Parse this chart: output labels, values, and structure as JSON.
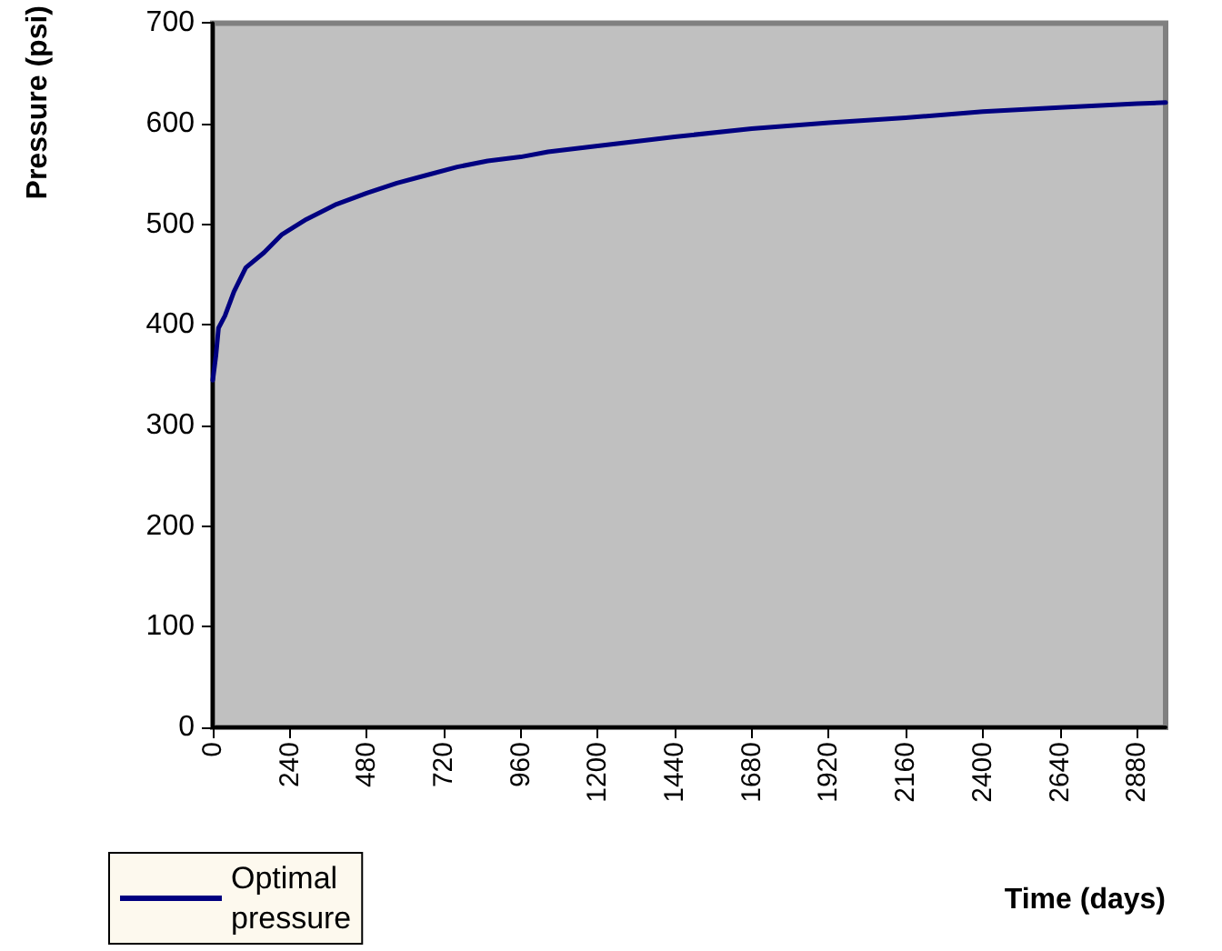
{
  "chart_data": {
    "type": "line",
    "xlabel": "Time (days)",
    "ylabel": "Pressure (psi)",
    "xlim": [
      0,
      2970
    ],
    "xticks": [
      0,
      240,
      480,
      720,
      960,
      1200,
      1440,
      1680,
      1920,
      2160,
      2400,
      2640,
      2880
    ],
    "ylim": [
      0,
      700
    ],
    "yticks": [
      0,
      100,
      200,
      300,
      400,
      500,
      600,
      700
    ],
    "grid": false,
    "legend": "bottom left",
    "marker": "none",
    "line_style": "solid",
    "series": [
      {
        "name": "Optimal\npressure",
        "color": "#000080",
        "x": [
          0,
          10,
          18,
          38,
          66,
          103,
          160,
          216,
          292,
          386,
          480,
          574,
          668,
          762,
          857,
          960,
          1045,
          1200,
          1440,
          1680,
          1920,
          2160,
          2400,
          2640,
          2880,
          2970
        ],
        "values": [
          345,
          370,
          397,
          409,
          433,
          457,
          472,
          490,
          505,
          520,
          531,
          541,
          549,
          557,
          563,
          567,
          572,
          578,
          587,
          595,
          601,
          606,
          612,
          616,
          620,
          621
        ]
      }
    ]
  }
}
